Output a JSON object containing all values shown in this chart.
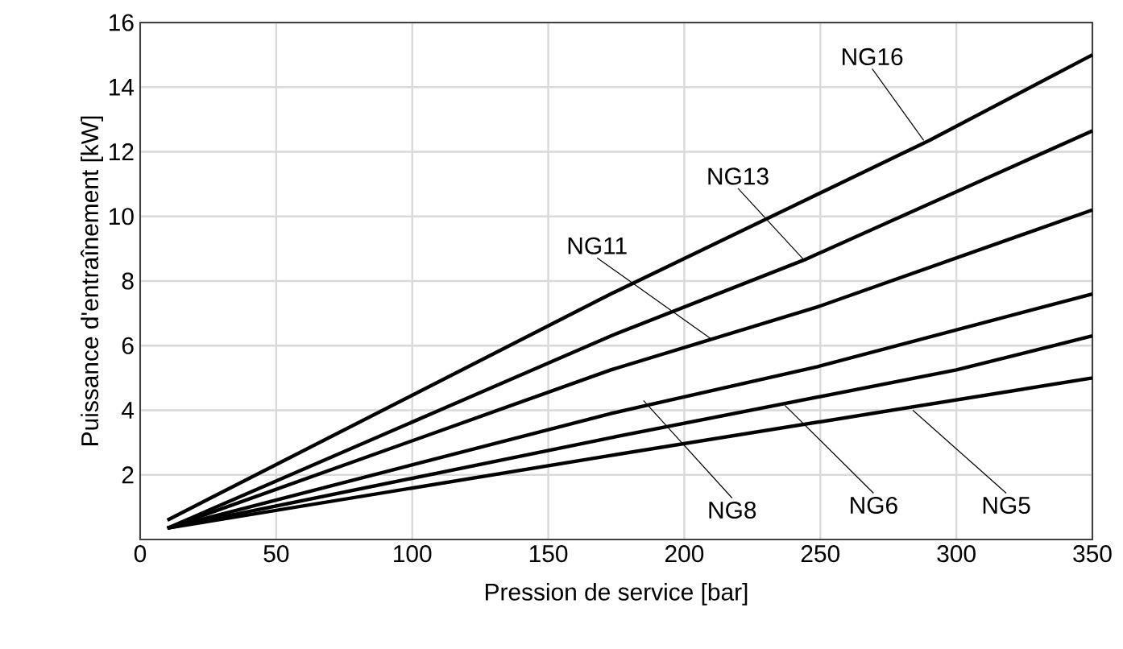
{
  "chart_data": {
    "type": "line",
    "xlabel": "Pression de service [bar]",
    "ylabel": "Puissance d'entraînement [kW]",
    "xlim": [
      0,
      350
    ],
    "ylim": [
      0,
      16
    ],
    "xticks": [
      0,
      50,
      100,
      150,
      200,
      250,
      300,
      350
    ],
    "yticks": [
      2,
      4,
      6,
      8,
      10,
      12,
      14,
      16
    ],
    "grid": true,
    "series": [
      {
        "color": "#000000",
        "x": [
          10,
          173,
          290,
          350
        ],
        "values": [
          0.6,
          7.6,
          12.35,
          15.0
        ]
      },
      {
        "color": "#000000",
        "x": [
          10,
          173,
          244,
          350
        ],
        "values": [
          0.35,
          6.3,
          8.65,
          12.65
        ]
      },
      {
        "color": "#000000",
        "x": [
          10,
          173,
          249,
          350
        ],
        "values": [
          0.35,
          5.25,
          7.2,
          10.2
        ]
      },
      {
        "color": "#000000",
        "x": [
          10,
          173,
          249,
          350
        ],
        "values": [
          0.35,
          3.9,
          5.35,
          7.6
        ]
      },
      {
        "color": "#000000",
        "x": [
          10,
          173,
          300,
          350
        ],
        "values": [
          0.35,
          3.15,
          5.25,
          6.3
        ]
      },
      {
        "color": "#000000",
        "x": [
          10,
          173,
          350
        ],
        "values": [
          0.35,
          2.6,
          5.0
        ]
      }
    ],
    "annotations": [
      {
        "text": "NG16",
        "x": 288,
        "y": 12.35
      },
      {
        "text": "NG13",
        "x": 244,
        "y": 8.65
      },
      {
        "text": "NG11",
        "x": 210,
        "y": 6.2
      },
      {
        "text": "NG8",
        "x": 185,
        "y": 4.3
      },
      {
        "text": "NG6",
        "x": 237,
        "y": 4.15
      },
      {
        "text": "NG5",
        "x": 284,
        "y": 4.0
      }
    ]
  }
}
